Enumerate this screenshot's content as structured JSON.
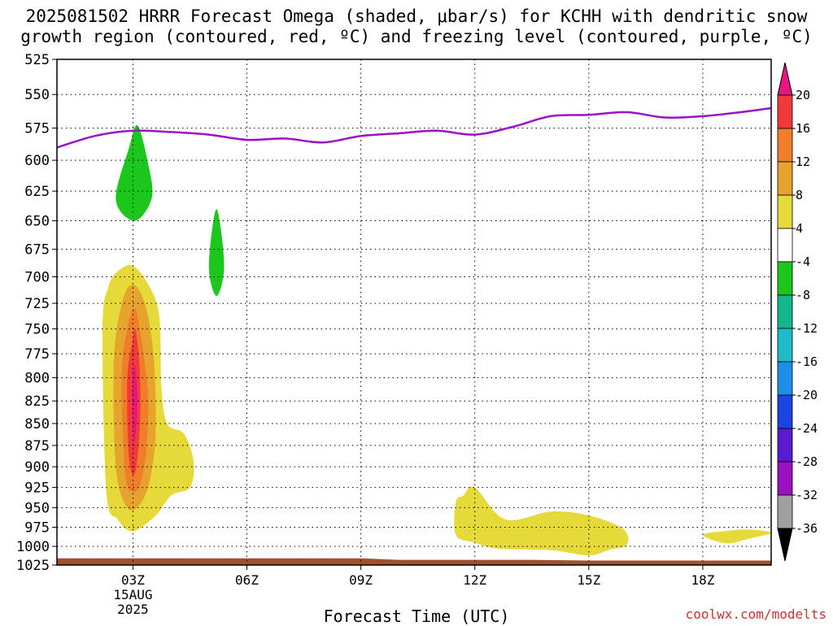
{
  "title_line1": "2025081502 HRRR Forecast Omega (shaded, μbar/s) for KCHH with dendritic snow",
  "title_line2": "growth region (contoured, red, ºC) and freezing level (contoured, purple, ºC)",
  "credit": "coolwx.com/modelts",
  "chart_data": {
    "type": "contour",
    "title": "2025081502 HRRR Forecast Omega (shaded, μbar/s) for KCHH with dendritic snow growth region (contoured, red, ºC) and freezing level (contoured, purple, ºC)",
    "xlabel": "Forecast Time (UTC)",
    "ylabel": "",
    "x_units": "hours since 2025-08-15 00Z",
    "xlim": [
      1.0,
      19.8
    ],
    "ylim": [
      1025,
      525
    ],
    "y_scale": "log-pressure (inverted)",
    "grid": true,
    "xticks": [
      {
        "x": 3,
        "label": "03Z",
        "sub1": "15AUG",
        "sub2": "2025"
      },
      {
        "x": 6,
        "label": "06Z"
      },
      {
        "x": 9,
        "label": "09Z"
      },
      {
        "x": 12,
        "label": "12Z"
      },
      {
        "x": 15,
        "label": "15Z"
      },
      {
        "x": 18,
        "label": "18Z"
      }
    ],
    "yticks": [
      525,
      550,
      575,
      600,
      625,
      650,
      675,
      700,
      725,
      750,
      775,
      800,
      825,
      850,
      875,
      900,
      925,
      950,
      975,
      1000,
      1025
    ],
    "colorbar": {
      "labels": [
        "20",
        "16",
        "12",
        "8",
        "4",
        "-4",
        "-8",
        "-12",
        "-16",
        "-20",
        "-24",
        "-28",
        "-32",
        "-36"
      ],
      "colors": [
        "#e8147f",
        "#f23a3a",
        "#ef7d2a",
        "#e6a42e",
        "#e6d93a",
        "#ffffff",
        "#1cc71c",
        "#12b88c",
        "#1fbcc7",
        "#1e8fe8",
        "#1a45e0",
        "#5a1ad0",
        "#9a12c0",
        "#a0a0a0",
        "#000000"
      ]
    },
    "freezing_level": {
      "color": "#9b10c8",
      "x": [
        1.0,
        2.0,
        3.0,
        4.0,
        5.0,
        6.0,
        7.0,
        8.0,
        9.0,
        10.0,
        11.0,
        12.0,
        13.0,
        14.0,
        15.0,
        16.0,
        17.0,
        18.0,
        19.0,
        19.8
      ],
      "p": [
        590,
        581,
        577,
        578,
        580,
        584,
        583,
        586,
        581,
        579,
        577,
        580,
        574,
        566,
        565,
        563,
        567,
        566,
        563,
        560
      ]
    },
    "omega_regions": [
      {
        "level": "-8",
        "color": "#1cc71c",
        "x": [
          2.55,
          2.9,
          3.12,
          3.38,
          3.5,
          3.05,
          2.55
        ],
        "p": [
          632,
          590,
          573,
          600,
          630,
          650,
          632
        ]
      },
      {
        "level": "-8",
        "color": "#1cc71c",
        "x": [
          5.0,
          5.2,
          5.4,
          5.2,
          5.0
        ],
        "p": [
          690,
          640,
          690,
          718,
          690
        ]
      },
      {
        "level": "4",
        "color": "#e6d93a",
        "x": [
          2.2,
          2.35,
          2.6,
          3.0,
          3.45,
          3.7,
          3.75,
          3.9,
          4.35,
          4.6,
          4.5,
          4.0,
          3.6,
          3.0,
          2.6,
          2.3,
          2.2
        ],
        "p": [
          750,
          710,
          695,
          690,
          710,
          740,
          810,
          850,
          862,
          895,
          925,
          935,
          960,
          980,
          965,
          930,
          750
        ]
      },
      {
        "level": "8",
        "color": "#e6a42e",
        "x": [
          2.5,
          2.75,
          3.05,
          3.35,
          3.55,
          3.6,
          3.45,
          3.2,
          2.85,
          2.55,
          2.5
        ],
        "p": [
          780,
          720,
          708,
          730,
          780,
          860,
          915,
          945,
          950,
          900,
          780
        ]
      },
      {
        "level": "12",
        "color": "#ef7d2a",
        "x": [
          2.7,
          2.85,
          3.05,
          3.22,
          3.4,
          3.35,
          3.2,
          3.0,
          2.8,
          2.7
        ],
        "p": [
          800,
          750,
          730,
          760,
          820,
          880,
          920,
          930,
          910,
          800
        ]
      },
      {
        "level": "16",
        "color": "#f23a3a",
        "x": [
          2.85,
          2.98,
          3.05,
          3.15,
          3.2,
          3.12,
          3.0,
          2.88,
          2.85
        ],
        "p": [
          800,
          765,
          750,
          775,
          830,
          890,
          910,
          880,
          800
        ]
      },
      {
        "level": "20",
        "color": "#e8147f",
        "x": [
          2.98,
          3.05,
          3.12,
          3.08,
          3.02,
          2.98
        ],
        "p": [
          815,
          785,
          820,
          860,
          870,
          815
        ]
      },
      {
        "level": "4",
        "color": "#e6d93a",
        "x": [
          11.5,
          11.7,
          12.0,
          12.8,
          14.0,
          15.0,
          15.9,
          16.0,
          15.5,
          15.0,
          14.0,
          12.6,
          12.0,
          11.5,
          11.5
        ],
        "p": [
          943,
          935,
          925,
          965,
          955,
          960,
          977,
          998,
          1005,
          1012,
          1005,
          1003,
          995,
          985,
          943
        ]
      },
      {
        "level": "4",
        "color": "#e6d93a",
        "x": [
          18.0,
          18.6,
          19.2,
          19.8,
          19.2,
          18.6,
          18.0
        ],
        "p": [
          985,
          980,
          978,
          982,
          990,
          996,
          985
        ]
      }
    ],
    "terrain": {
      "color": "#a0522d",
      "x": [
        1.0,
        6.0,
        9.0,
        10.0,
        12.0,
        13.5,
        15.0,
        19.8
      ],
      "p": [
        1016,
        1016,
        1016,
        1018,
        1018,
        1018,
        1019,
        1019
      ]
    }
  }
}
